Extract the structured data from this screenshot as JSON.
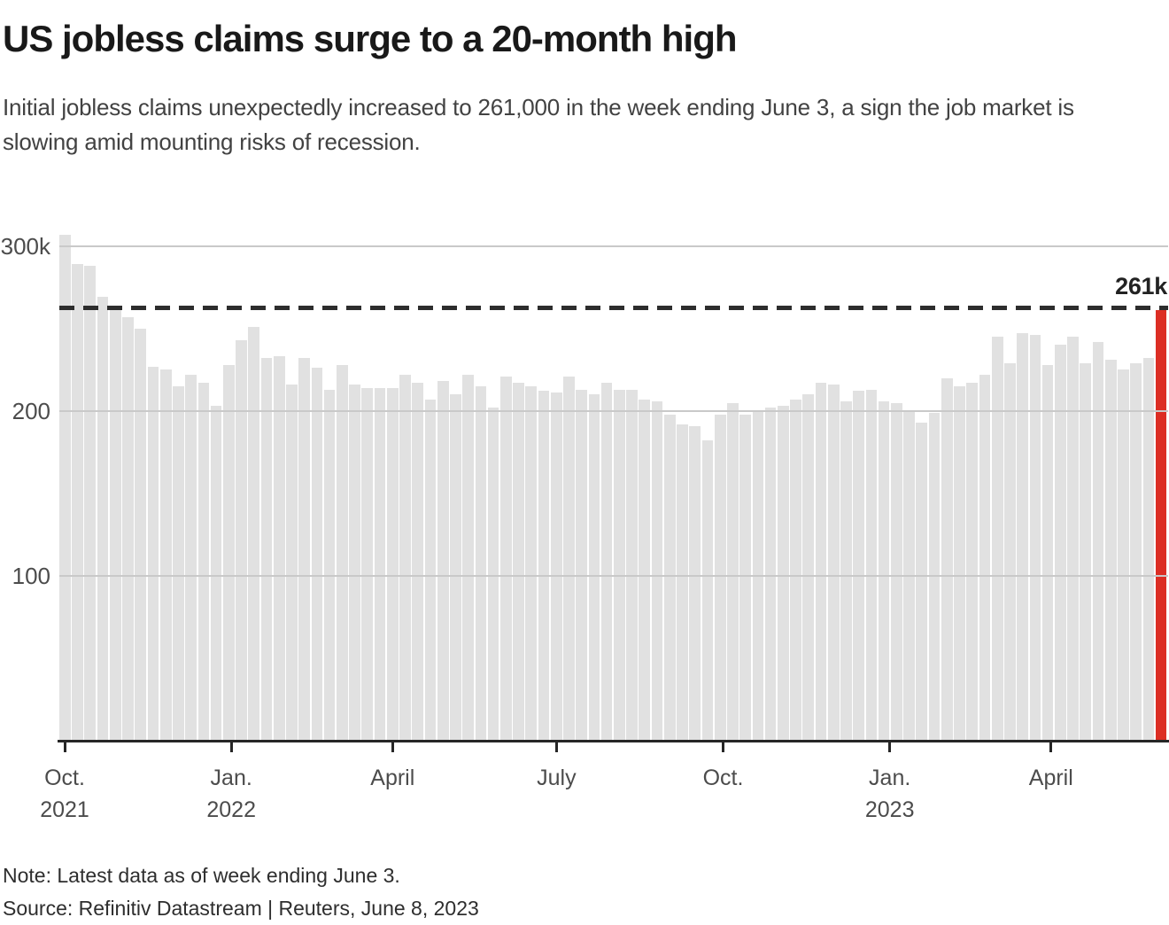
{
  "header": {
    "title": "US jobless claims surge to a 20-month high",
    "subtitle": "Initial jobless claims unexpectedly increased to 261,000 in the week ending June 3, a sign the job market is slowing amid mounting risks of recession."
  },
  "chart_data": {
    "type": "bar",
    "title": "US jobless claims surge to a 20-month high",
    "series_name": "Initial jobless claims, thousands (weekly)",
    "ylim": [
      0,
      317
    ],
    "grid": "horizontal",
    "legend": "none",
    "y_axis": {
      "ticks": [
        {
          "label": "300k",
          "value": 300
        },
        {
          "label": "200",
          "value": 200
        },
        {
          "label": "100",
          "value": 100
        }
      ]
    },
    "x_axis": {
      "total_weeks": 88,
      "ticks": [
        {
          "label": "Oct.",
          "year": "2021",
          "week": 0.42
        },
        {
          "label": "Jan.",
          "year": "2022",
          "week": 13.65
        },
        {
          "label": "April",
          "year": "",
          "week": 26.45
        },
        {
          "label": "July",
          "year": "",
          "week": 39.46
        },
        {
          "label": "Oct.",
          "year": "",
          "week": 52.68
        },
        {
          "label": "Jan.",
          "year": "2023",
          "week": 65.91
        },
        {
          "label": "April",
          "year": "",
          "week": 78.71
        }
      ]
    },
    "values": [
      307,
      289,
      288,
      269,
      263,
      257,
      250,
      227,
      225,
      215,
      222,
      217,
      203,
      228,
      243,
      251,
      232,
      233,
      216,
      232,
      226,
      213,
      228,
      216,
      214,
      214,
      214,
      222,
      217,
      207,
      218,
      210,
      222,
      215,
      202,
      221,
      217,
      215,
      212,
      211,
      221,
      213,
      210,
      217,
      213,
      213,
      207,
      206,
      198,
      192,
      191,
      182,
      198,
      205,
      198,
      200,
      202,
      203,
      207,
      210,
      217,
      216,
      206,
      212,
      213,
      206,
      205,
      200,
      193,
      199,
      220,
      215,
      217,
      222,
      245,
      229,
      247,
      246,
      228,
      240,
      245,
      229,
      242,
      231,
      225,
      229,
      232,
      261
    ],
    "highlight_index": 87,
    "reference_line": {
      "value": 261,
      "label": "261k"
    },
    "colors": {
      "bar": "#e1e1e1",
      "highlight": "#dc2e24",
      "gridline": "#c9c9c9",
      "axis": "#262626",
      "reference_line": "#2d2d2d"
    }
  },
  "footer": {
    "note": "Note: Latest data as of week ending June 3.",
    "source": "Source: Refinitiv Datastream | Reuters, June 8, 2023"
  }
}
